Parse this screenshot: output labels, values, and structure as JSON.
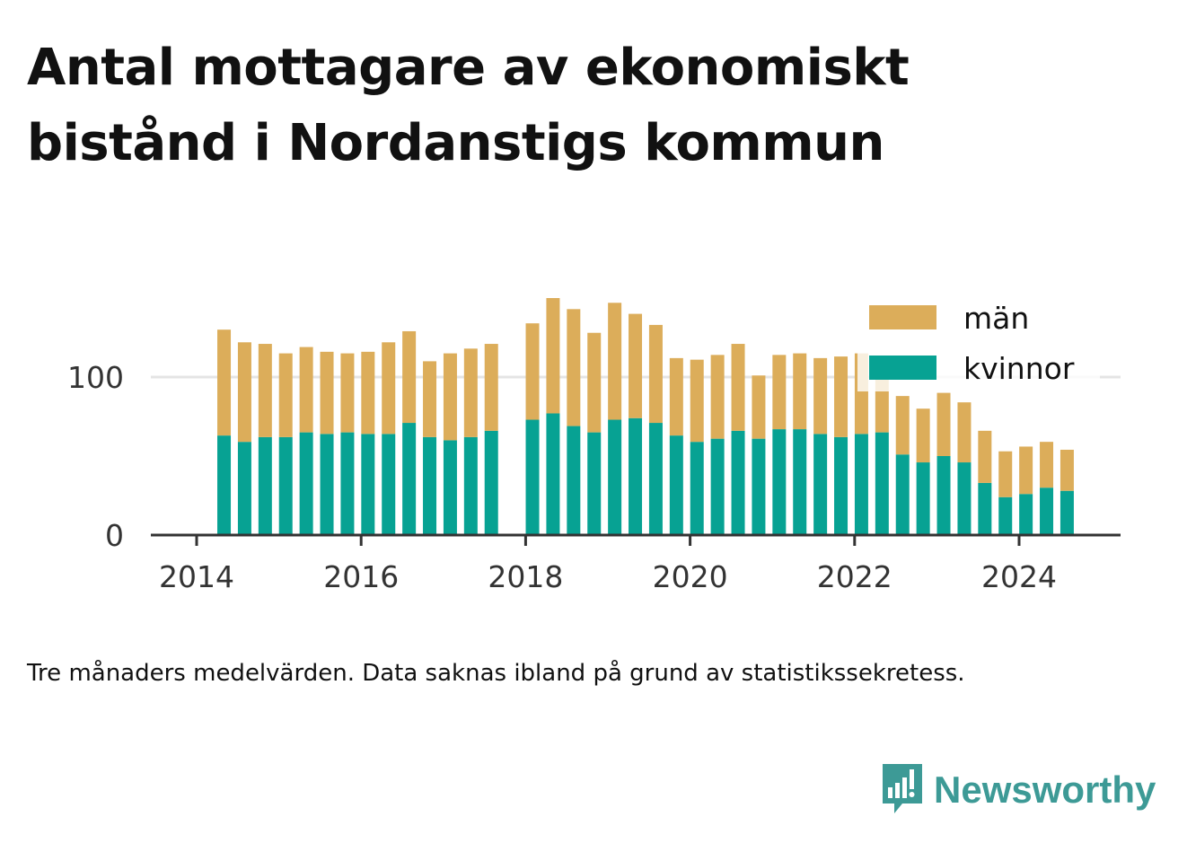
{
  "title": "Antal mottagare av ekonomiskt bistånd i Nordanstigs kommun",
  "note": "Tre månaders medelvärden. Data saknas ibland på grund av statistikssekretess.",
  "brand": {
    "name": "Newsworthy",
    "icon": "newsworthy-logo-icon",
    "color": "#3d9a96"
  },
  "chart_data": {
    "type": "bar",
    "stacked": true,
    "title": "Antal mottagare av ekonomiskt bistånd i Nordanstigs kommun",
    "xlabel": "",
    "ylabel": "",
    "x_ticks": [
      "2014",
      "2016",
      "2018",
      "2020",
      "2022",
      "2024"
    ],
    "y_ticks": [
      "0",
      "100"
    ],
    "ylim": [
      0,
      155
    ],
    "grid": "horizontal",
    "legend_position": "top-right",
    "categories": [
      "2014-05",
      "2014-08",
      "2014-11",
      "2015-02",
      "2015-05",
      "2015-08",
      "2015-11",
      "2016-02",
      "2016-05",
      "2016-08",
      "2016-11",
      "2017-02",
      "2017-05",
      "2017-08",
      "2018-02",
      "2018-05",
      "2018-08",
      "2018-11",
      "2019-02",
      "2019-05",
      "2019-08",
      "2019-11",
      "2020-02",
      "2020-05",
      "2020-08",
      "2020-11",
      "2021-02",
      "2021-05",
      "2021-08",
      "2021-11",
      "2022-02",
      "2022-05",
      "2022-08",
      "2022-11",
      "2023-02",
      "2023-05",
      "2023-08",
      "2023-11",
      "2024-02",
      "2024-05",
      "2024-08"
    ],
    "series": [
      {
        "name": "kvinnor",
        "color": "#07a293",
        "values": [
          63,
          59,
          62,
          62,
          65,
          64,
          65,
          64,
          64,
          71,
          62,
          60,
          62,
          66,
          73,
          77,
          69,
          65,
          73,
          74,
          71,
          63,
          59,
          61,
          66,
          61,
          67,
          67,
          64,
          62,
          64,
          65,
          51,
          46,
          50,
          46,
          33,
          24,
          26,
          30,
          28
        ]
      },
      {
        "name": "män",
        "color": "#dcad5a",
        "values": [
          67,
          63,
          59,
          53,
          54,
          52,
          50,
          52,
          58,
          58,
          48,
          55,
          56,
          55,
          61,
          73,
          74,
          63,
          74,
          66,
          62,
          49,
          52,
          53,
          55,
          40,
          47,
          48,
          48,
          51,
          51,
          42,
          37,
          34,
          40,
          38,
          33,
          29,
          30,
          29,
          26
        ]
      }
    ]
  }
}
